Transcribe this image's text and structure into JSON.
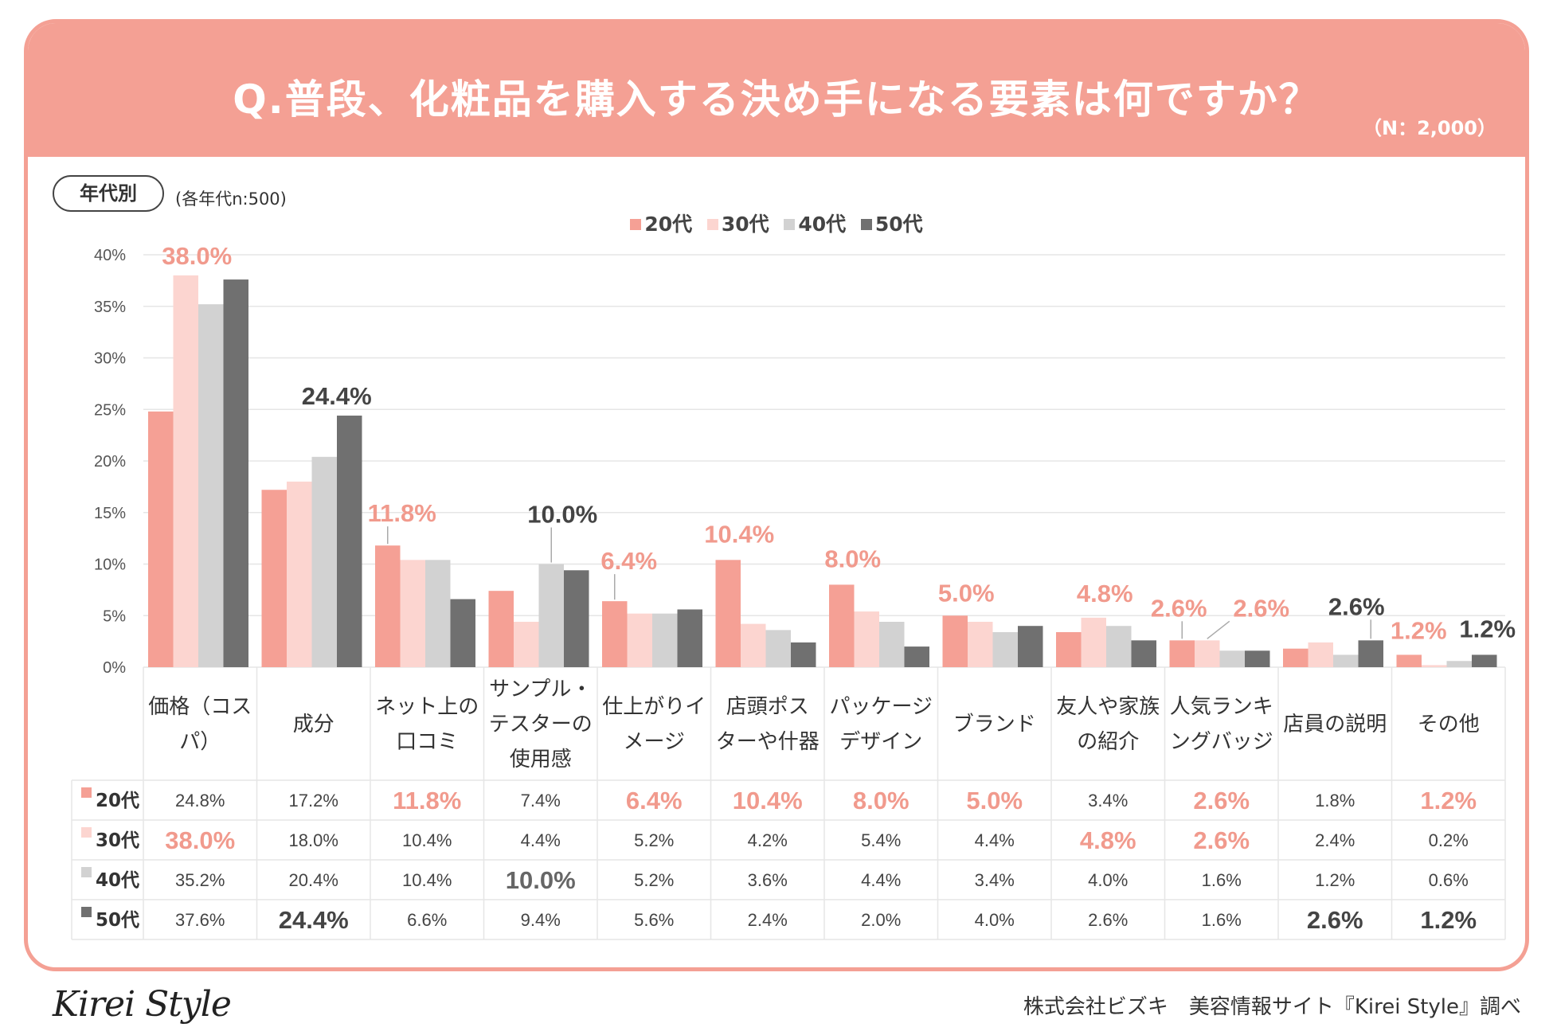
{
  "title": "Q.普段、化粧品を購入する決め手になる要素は何ですか？",
  "sample_note": "（N：2,000）",
  "segment_pill": "年代別",
  "segment_note": "(各年代n:500)",
  "footer_logo": "Kirei Style",
  "footer_credit": "株式会社ビズキ　美容情報サイト『Kirei Style』調べ",
  "colors": {
    "accent": "#f4a094",
    "series": [
      "#f5a095",
      "#fcd5d0",
      "#d2d2d2",
      "#707070"
    ],
    "label_pink": "#f19a8d",
    "label_dark": "#444444",
    "grid": "#e6e6e6"
  },
  "legend": [
    "20代",
    "30代",
    "40代",
    "50代"
  ],
  "chart_data": {
    "type": "bar",
    "title": "Q.普段、化粧品を購入する決め手になる要素は何ですか？",
    "categories": [
      [
        "価格（コス",
        "パ）"
      ],
      [
        "成分"
      ],
      [
        "ネット上の",
        "口コミ"
      ],
      [
        "サンプル・",
        "テスターの",
        "使用感"
      ],
      [
        "仕上がりイ",
        "メージ"
      ],
      [
        "店頭ポス",
        "ターや什器"
      ],
      [
        "パッケージ",
        "デザイン"
      ],
      [
        "ブランド"
      ],
      [
        "友人や家族",
        "の紹介"
      ],
      [
        "人気ランキ",
        "ングバッジ"
      ],
      [
        "店員の説明"
      ],
      [
        "その他"
      ]
    ],
    "series": [
      {
        "name": "20代",
        "values": [
          24.8,
          17.2,
          11.8,
          7.4,
          6.4,
          10.4,
          8.0,
          5.0,
          3.4,
          2.6,
          1.8,
          1.2
        ]
      },
      {
        "name": "30代",
        "values": [
          38.0,
          18.0,
          10.4,
          4.4,
          5.2,
          4.2,
          5.4,
          4.4,
          4.8,
          2.6,
          2.4,
          0.2
        ]
      },
      {
        "name": "40代",
        "values": [
          35.2,
          20.4,
          10.4,
          10.0,
          5.2,
          3.6,
          4.4,
          3.4,
          4.0,
          1.6,
          1.2,
          0.6
        ]
      },
      {
        "name": "50代",
        "values": [
          37.6,
          24.4,
          6.6,
          9.4,
          5.6,
          2.4,
          2.0,
          4.0,
          2.6,
          1.6,
          2.6,
          1.2
        ]
      }
    ],
    "table_values": [
      [
        "24.8%",
        "17.2%",
        "11.8%",
        "7.4%",
        "6.4%",
        "10.4%",
        "8.0%",
        "5.0%",
        "3.4%",
        "2.6%",
        "1.8%",
        "1.2%"
      ],
      [
        "38.0%",
        "18.0%",
        "10.4%",
        "4.4%",
        "5.2%",
        "4.2%",
        "5.4%",
        "4.4%",
        "4.8%",
        "2.6%",
        "2.4%",
        "0.2%"
      ],
      [
        "35.2%",
        "20.4%",
        "10.4%",
        "10.0%",
        "5.2%",
        "3.6%",
        "4.4%",
        "3.4%",
        "4.0%",
        "1.6%",
        "1.2%",
        "0.6%"
      ],
      [
        "37.6%",
        "24.4%",
        "6.6%",
        "9.4%",
        "5.6%",
        "2.4%",
        "2.0%",
        "4.0%",
        "2.6%",
        "1.6%",
        "2.6%",
        "1.2%"
      ]
    ],
    "highlight_cells": [
      [
        0,
        2
      ],
      [
        0,
        4
      ],
      [
        0,
        5
      ],
      [
        0,
        6
      ],
      [
        0,
        7
      ],
      [
        0,
        9
      ],
      [
        0,
        11
      ],
      [
        1,
        0
      ],
      [
        1,
        8
      ],
      [
        1,
        9
      ],
      [
        2,
        3
      ],
      [
        3,
        1
      ],
      [
        3,
        10
      ],
      [
        3,
        11
      ]
    ],
    "callouts": [
      {
        "text": "38.0%",
        "category": 0,
        "series": 1,
        "color": "pink"
      },
      {
        "text": "24.4%",
        "category": 1,
        "series": 3,
        "color": "dark"
      },
      {
        "text": "11.8%",
        "category": 2,
        "series": 0,
        "color": "pink"
      },
      {
        "text": "10.0%",
        "category": 3,
        "series": 2,
        "color": "dark"
      },
      {
        "text": "6.4%",
        "category": 4,
        "series": 0,
        "color": "pink"
      },
      {
        "text": "10.4%",
        "category": 5,
        "series": 0,
        "color": "pink"
      },
      {
        "text": "8.0%",
        "category": 6,
        "series": 0,
        "color": "pink"
      },
      {
        "text": "5.0%",
        "category": 7,
        "series": 0,
        "color": "pink"
      },
      {
        "text": "4.8%",
        "category": 8,
        "series": 1,
        "color": "pink"
      },
      {
        "text": "2.6%",
        "category": 9,
        "series": 0,
        "color": "pink"
      },
      {
        "text": "2.6%",
        "category": 9,
        "series": 1,
        "color": "pink"
      },
      {
        "text": "2.6%",
        "category": 10,
        "series": 3,
        "color": "dark"
      },
      {
        "text": "1.2%",
        "category": 11,
        "series": 0,
        "color": "pink"
      },
      {
        "text": "1.2%",
        "category": 11,
        "series": 3,
        "color": "dark"
      }
    ],
    "yticks": [
      "40%",
      "35%",
      "30%",
      "25%",
      "20%",
      "15%",
      "10%",
      "5%",
      "0%"
    ],
    "ylim": [
      0,
      40
    ],
    "xlabel": "",
    "ylabel": "",
    "grid": true,
    "legend_position": "top-center"
  }
}
